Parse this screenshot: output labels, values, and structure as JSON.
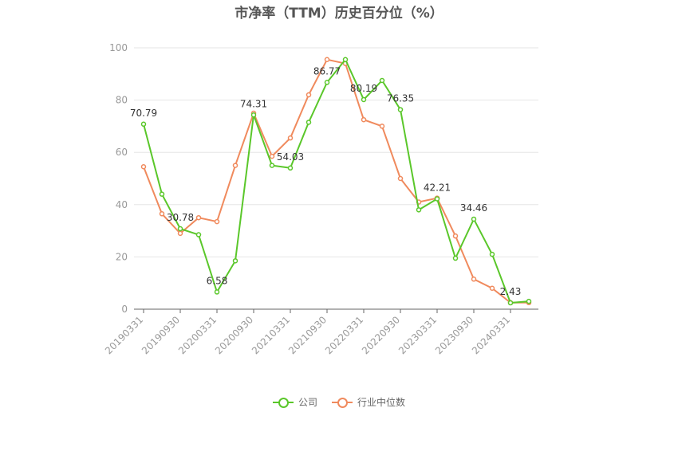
{
  "chart_data": {
    "type": "line",
    "title": "市净率（TTM）历史百分位（%）",
    "x": [
      "20190331",
      "20190630",
      "20190930",
      "20191231",
      "20200331",
      "20200630",
      "20200930",
      "20201231",
      "20210331",
      "20210630",
      "20210930",
      "20211231",
      "20220331",
      "20220630",
      "20220930",
      "20221231",
      "20230331",
      "20230630",
      "20230930",
      "20231231",
      "20240331",
      "20240630"
    ],
    "x_tick_labels": [
      "20190331",
      "20190930",
      "20200331",
      "20200930",
      "20210331",
      "20210930",
      "20220331",
      "20220930",
      "20230331",
      "20230930",
      "20240331"
    ],
    "ylim": [
      0,
      100
    ],
    "y_ticks": [
      0,
      20,
      40,
      60,
      80,
      100
    ],
    "grid": true,
    "legend_position": "bottom",
    "series": [
      {
        "name": "公司",
        "color": "#5ac72a",
        "values": [
          70.79,
          44.0,
          30.78,
          28.5,
          6.58,
          18.5,
          74.31,
          55.0,
          54.03,
          71.5,
          86.77,
          95.5,
          80.19,
          87.5,
          76.35,
          38.0,
          42.21,
          19.5,
          34.46,
          21.0,
          2.43,
          3.0
        ],
        "labels": {
          "0": "70.79",
          "2": "30.78",
          "4": "6.58",
          "6": "74.31",
          "8": "54.03",
          "10": "86.77",
          "12": "80.19",
          "14": "76.35",
          "16": "42.21",
          "18": "34.46",
          "20": "2.43"
        }
      },
      {
        "name": "行业中位数",
        "color": "#f08a5d",
        "values": [
          54.5,
          36.5,
          29.0,
          35.0,
          33.5,
          55.0,
          75.0,
          58.5,
          65.5,
          82.0,
          95.5,
          94.0,
          72.5,
          70.0,
          50.0,
          41.0,
          42.5,
          28.0,
          11.5,
          8.0,
          2.5,
          2.5
        ]
      }
    ]
  }
}
